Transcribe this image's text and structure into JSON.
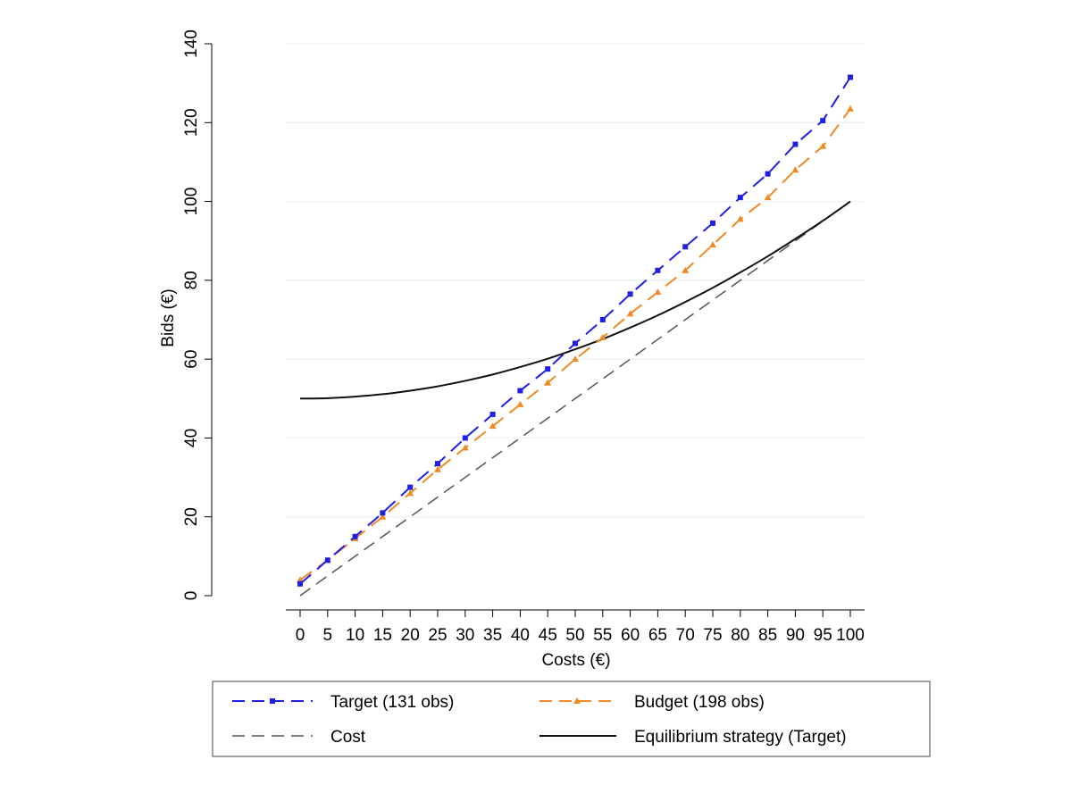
{
  "chart_data": {
    "type": "line",
    "title": "",
    "xlabel": "Costs (€)",
    "ylabel": "Bids (€)",
    "xlim": [
      0,
      100
    ],
    "ylim": [
      0,
      140
    ],
    "x_ticks": [
      0,
      5,
      10,
      15,
      20,
      25,
      30,
      35,
      40,
      45,
      50,
      55,
      60,
      65,
      70,
      75,
      80,
      85,
      90,
      95,
      100
    ],
    "y_ticks": [
      0,
      20,
      40,
      60,
      80,
      100,
      120,
      140
    ],
    "grid": "horizontal",
    "legend_position": "bottom",
    "x": [
      0,
      5,
      10,
      15,
      20,
      25,
      30,
      35,
      40,
      45,
      50,
      55,
      60,
      65,
      70,
      75,
      80,
      85,
      90,
      95,
      100
    ],
    "series": [
      {
        "name": "Target (131 obs)",
        "color": "#1f1fe6",
        "style": "dashed",
        "marker": "square",
        "values": [
          3,
          9,
          15,
          21,
          27.5,
          33.5,
          40,
          46,
          52,
          57.5,
          64,
          70,
          76.5,
          82.5,
          88.5,
          94.5,
          101,
          107,
          114.5,
          120.5,
          131.5
        ]
      },
      {
        "name": "Budget (198 obs)",
        "color": "#f08a24",
        "style": "dashed",
        "marker": "triangle",
        "values": [
          4,
          9,
          14.5,
          20,
          26,
          32,
          37.5,
          43,
          48.5,
          54,
          60,
          65.5,
          71.5,
          77,
          82.5,
          89,
          95.5,
          101,
          108,
          114,
          123.5
        ]
      },
      {
        "name": "Cost",
        "color": "#555555",
        "style": "dashed",
        "marker": "none",
        "values": [
          0,
          5,
          10,
          15,
          20,
          25,
          30,
          35,
          40,
          45,
          50,
          55,
          60,
          65,
          70,
          75,
          80,
          85,
          90,
          95,
          100
        ]
      },
      {
        "name": "Equilibrium strategy (Target)",
        "color": "#111111",
        "style": "solid",
        "marker": "none",
        "values": [
          50,
          50.1,
          50.5,
          51.1,
          52,
          53.1,
          54.5,
          56.1,
          58,
          60.1,
          62.5,
          65.1,
          68,
          71.1,
          74.5,
          78.1,
          82,
          86.1,
          90.5,
          95.1,
          100
        ]
      }
    ]
  }
}
